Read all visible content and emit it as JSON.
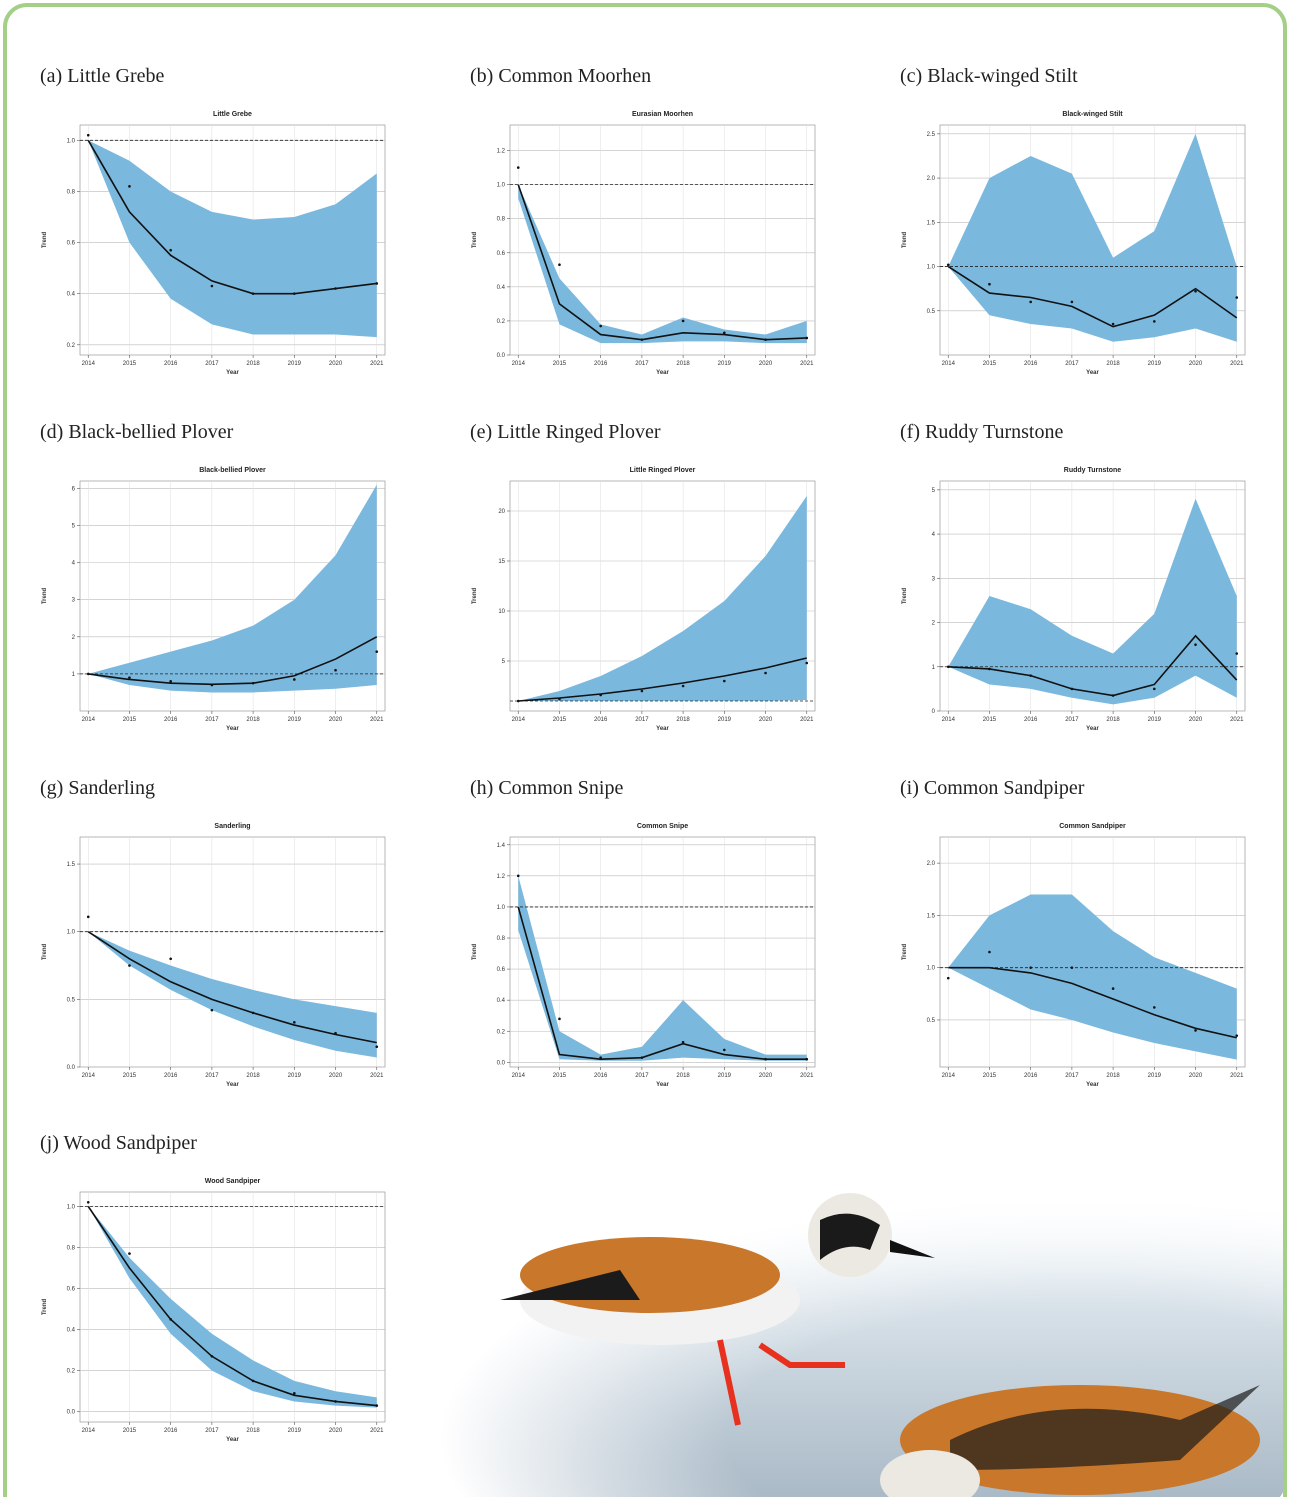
{
  "chart_data": [
    {
      "type": "line",
      "caption": "(a) Little Grebe",
      "title": "Little Grebe",
      "xlabel": "Year",
      "ylabel": "Trend",
      "x": [
        2014,
        2015,
        2016,
        2017,
        2018,
        2019,
        2020,
        2021
      ],
      "xlim": [
        2013.8,
        2021.2
      ],
      "xticks": [
        2014,
        2015,
        2016,
        2017,
        2018,
        2019,
        2020,
        2021
      ],
      "ylim": [
        0.16,
        1.06
      ],
      "yticks": [
        0.2,
        0.4,
        0.6,
        0.8,
        {
          "value": 1,
          "label": "1.0"
        }
      ],
      "reference": 1,
      "grid": true,
      "band": {
        "color": "#7ab8de",
        "lower": [
          1.0,
          0.6,
          0.38,
          0.28,
          0.24,
          0.24,
          0.24,
          0.23
        ],
        "upper": [
          1.0,
          0.92,
          0.8,
          0.72,
          0.69,
          0.7,
          0.75,
          0.87
        ]
      },
      "series": [
        {
          "style": "line",
          "color": "#111111",
          "values": [
            1.0,
            0.72,
            0.55,
            0.45,
            0.4,
            0.4,
            0.42,
            0.44
          ]
        },
        {
          "style": "points",
          "color": "#111111",
          "values": [
            1.02,
            0.82,
            0.57,
            0.43,
            0.4,
            0.4,
            0.42,
            0.44
          ]
        }
      ]
    },
    {
      "type": "line",
      "caption": "(b) Common Moorhen",
      "title": "Eurasian Moorhen",
      "xlabel": "Year",
      "ylabel": "Trend",
      "x": [
        2014,
        2015,
        2016,
        2017,
        2018,
        2019,
        2020,
        2021
      ],
      "xlim": [
        2013.8,
        2021.2
      ],
      "xticks": [
        2014,
        2015,
        2016,
        2017,
        2018,
        2019,
        2020,
        2021
      ],
      "ylim": [
        0,
        1.35
      ],
      "yticks": [
        {
          "value": 0,
          "label": "0.0"
        },
        0.2,
        0.4,
        0.6,
        0.8,
        {
          "value": 1,
          "label": "1.0"
        },
        1.2
      ],
      "reference": 1,
      "grid": true,
      "band": {
        "color": "#7ab8de",
        "lower": [
          0.92,
          0.18,
          0.07,
          0.07,
          0.08,
          0.08,
          0.07,
          0.07
        ],
        "upper": [
          1.0,
          0.45,
          0.18,
          0.12,
          0.22,
          0.15,
          0.12,
          0.2
        ]
      },
      "series": [
        {
          "style": "line",
          "color": "#111111",
          "values": [
            1.0,
            0.3,
            0.12,
            0.09,
            0.13,
            0.12,
            0.09,
            0.1
          ]
        },
        {
          "style": "points",
          "color": "#111111",
          "values": [
            1.1,
            0.53,
            0.17,
            0.09,
            0.2,
            0.13,
            0.09,
            0.1
          ]
        }
      ]
    },
    {
      "type": "line",
      "caption": "(c) Black-winged Stilt",
      "title": "Black-winged Stilt",
      "xlabel": "Year",
      "ylabel": "Trend",
      "x": [
        2014,
        2015,
        2016,
        2017,
        2018,
        2019,
        2020,
        2021
      ],
      "xlim": [
        2013.8,
        2021.2
      ],
      "xticks": [
        2014,
        2015,
        2016,
        2017,
        2018,
        2019,
        2020,
        2021
      ],
      "ylim": [
        0,
        2.6
      ],
      "yticks": [
        0.5,
        {
          "value": 1,
          "label": "1.0"
        },
        1.5,
        {
          "value": 2,
          "label": "2.0"
        },
        2.5
      ],
      "reference": 1,
      "grid": true,
      "band": {
        "color": "#7ab8de",
        "lower": [
          1.0,
          0.45,
          0.35,
          0.3,
          0.15,
          0.2,
          0.3,
          0.15
        ],
        "upper": [
          1.0,
          2.0,
          2.25,
          2.05,
          1.1,
          1.4,
          2.5,
          1.0
        ]
      },
      "series": [
        {
          "style": "line",
          "color": "#111111",
          "values": [
            1.0,
            0.7,
            0.65,
            0.55,
            0.32,
            0.45,
            0.75,
            0.42
          ]
        },
        {
          "style": "points",
          "color": "#111111",
          "values": [
            1.02,
            0.8,
            0.6,
            0.6,
            0.35,
            0.38,
            0.72,
            0.65
          ]
        }
      ]
    },
    {
      "type": "line",
      "caption": "(d) Black-bellied Plover",
      "title": "Black-bellied Plover",
      "xlabel": "Year",
      "ylabel": "Trend",
      "x": [
        2014,
        2015,
        2016,
        2017,
        2018,
        2019,
        2020,
        2021
      ],
      "xlim": [
        2013.8,
        2021.2
      ],
      "xticks": [
        2014,
        2015,
        2016,
        2017,
        2018,
        2019,
        2020,
        2021
      ],
      "ylim": [
        0,
        6.2
      ],
      "yticks": [
        1,
        2,
        3,
        4,
        5,
        6
      ],
      "reference": 1,
      "grid": true,
      "band": {
        "color": "#7ab8de",
        "lower": [
          1,
          0.7,
          0.55,
          0.5,
          0.5,
          0.55,
          0.6,
          0.7
        ],
        "upper": [
          1,
          1.3,
          1.6,
          1.9,
          2.3,
          3.0,
          4.2,
          6.1
        ]
      },
      "series": [
        {
          "style": "line",
          "color": "#111111",
          "values": [
            1,
            0.85,
            0.75,
            0.72,
            0.75,
            0.95,
            1.4,
            2.0
          ]
        },
        {
          "style": "points",
          "color": "#111111",
          "values": [
            1,
            0.9,
            0.8,
            0.7,
            0.75,
            0.85,
            1.1,
            1.6
          ]
        }
      ]
    },
    {
      "type": "line",
      "caption": "(e) Little Ringed Plover",
      "title": "Little Ringed Plover",
      "xlabel": "Year",
      "ylabel": "Trend",
      "x": [
        2014,
        2015,
        2016,
        2017,
        2018,
        2019,
        2020,
        2021
      ],
      "xlim": [
        2013.8,
        2021.2
      ],
      "xticks": [
        2014,
        2015,
        2016,
        2017,
        2018,
        2019,
        2020,
        2021
      ],
      "ylim": [
        0,
        23
      ],
      "yticks": [
        5,
        10,
        15,
        20
      ],
      "reference": 1,
      "grid": true,
      "band": {
        "color": "#7ab8de",
        "lower": [
          1,
          1.0,
          1.0,
          1.0,
          1.0,
          1.0,
          1.0,
          1.1
        ],
        "upper": [
          1,
          2,
          3.5,
          5.5,
          8,
          11,
          15.5,
          21.5
        ]
      },
      "series": [
        {
          "style": "line",
          "color": "#111111",
          "values": [
            1,
            1.3,
            1.7,
            2.2,
            2.8,
            3.5,
            4.3,
            5.3
          ]
        },
        {
          "style": "points",
          "color": "#111111",
          "values": [
            1,
            1.2,
            1.6,
            2,
            2.5,
            3,
            3.8,
            4.8
          ]
        }
      ]
    },
    {
      "type": "line",
      "caption": "(f) Ruddy Turnstone",
      "title": "Ruddy Turnstone",
      "xlabel": "Year",
      "ylabel": "Trend",
      "x": [
        2014,
        2015,
        2016,
        2017,
        2018,
        2019,
        2020,
        2021
      ],
      "xlim": [
        2013.8,
        2021.2
      ],
      "xticks": [
        2014,
        2015,
        2016,
        2017,
        2018,
        2019,
        2020,
        2021
      ],
      "ylim": [
        0,
        5.2
      ],
      "yticks": [
        0,
        1,
        2,
        3,
        4,
        5
      ],
      "reference": 1,
      "grid": true,
      "band": {
        "color": "#7ab8de",
        "lower": [
          1,
          0.6,
          0.5,
          0.3,
          0.15,
          0.3,
          0.8,
          0.3
        ],
        "upper": [
          1,
          2.6,
          2.3,
          1.7,
          1.3,
          2.2,
          4.8,
          2.6
        ]
      },
      "series": [
        {
          "style": "line",
          "color": "#111111",
          "values": [
            1,
            0.95,
            0.8,
            0.5,
            0.35,
            0.6,
            1.7,
            0.7
          ]
        },
        {
          "style": "points",
          "color": "#111111",
          "values": [
            1,
            0.95,
            0.8,
            0.5,
            0.35,
            0.5,
            1.5,
            1.3
          ]
        }
      ]
    },
    {
      "type": "line",
      "caption": "(g) Sanderling",
      "title": "Sanderling",
      "xlabel": "Year",
      "ylabel": "Trend",
      "x": [
        2014,
        2015,
        2016,
        2017,
        2018,
        2019,
        2020,
        2021
      ],
      "xlim": [
        2013.8,
        2021.2
      ],
      "xticks": [
        2014,
        2015,
        2016,
        2017,
        2018,
        2019,
        2020,
        2021
      ],
      "ylim": [
        0,
        1.7
      ],
      "yticks": [
        {
          "value": 0,
          "label": "0.0"
        },
        0.5,
        {
          "value": 1,
          "label": "1.0"
        },
        1.5
      ],
      "reference": 1,
      "grid": true,
      "band": {
        "color": "#7ab8de",
        "lower": [
          1,
          0.75,
          0.57,
          0.42,
          0.3,
          0.2,
          0.12,
          0.07
        ],
        "upper": [
          1,
          0.86,
          0.75,
          0.65,
          0.57,
          0.5,
          0.45,
          0.4
        ]
      },
      "series": [
        {
          "style": "line",
          "color": "#111111",
          "values": [
            1,
            0.8,
            0.63,
            0.5,
            0.4,
            0.31,
            0.24,
            0.18
          ]
        },
        {
          "style": "points",
          "color": "#111111",
          "values": [
            1.11,
            0.75,
            0.8,
            0.42,
            0.4,
            0.33,
            0.25,
            0.15
          ]
        }
      ]
    },
    {
      "type": "line",
      "caption": "(h) Common Snipe",
      "title": "Common Snipe",
      "xlabel": "Year",
      "ylabel": "Trend",
      "x": [
        2014,
        2015,
        2016,
        2017,
        2018,
        2019,
        2020,
        2021
      ],
      "xlim": [
        2013.8,
        2021.2
      ],
      "xticks": [
        2014,
        2015,
        2016,
        2017,
        2018,
        2019,
        2020,
        2021
      ],
      "ylim": [
        -0.03,
        1.45
      ],
      "yticks": [
        {
          "value": 0,
          "label": "0.0"
        },
        0.2,
        0.4,
        0.6,
        0.8,
        {
          "value": 1,
          "label": "1.0"
        },
        1.2,
        1.4
      ],
      "reference": 1,
      "grid": true,
      "band": {
        "color": "#7ab8de",
        "lower": [
          0.85,
          0.02,
          0.01,
          0.01,
          0.03,
          0.02,
          0.01,
          0.01
        ],
        "upper": [
          1.2,
          0.2,
          0.05,
          0.1,
          0.4,
          0.15,
          0.05,
          0.05
        ]
      },
      "series": [
        {
          "style": "line",
          "color": "#111111",
          "values": [
            1.0,
            0.05,
            0.02,
            0.03,
            0.12,
            0.05,
            0.02,
            0.02
          ]
        },
        {
          "style": "points",
          "color": "#111111",
          "values": [
            1.2,
            0.28,
            0.03,
            0.03,
            0.13,
            0.08,
            0.02,
            0.02
          ]
        }
      ]
    },
    {
      "type": "line",
      "caption": "(i) Common Sandpiper",
      "title": "Common Sandpiper",
      "xlabel": "Year",
      "ylabel": "Trend",
      "x": [
        2014,
        2015,
        2016,
        2017,
        2018,
        2019,
        2020,
        2021
      ],
      "xlim": [
        2013.8,
        2021.2
      ],
      "xticks": [
        2014,
        2015,
        2016,
        2017,
        2018,
        2019,
        2020,
        2021
      ],
      "ylim": [
        0.05,
        2.25
      ],
      "yticks": [
        0.5,
        {
          "value": 1,
          "label": "1.0"
        },
        1.5,
        {
          "value": 2,
          "label": "2.0"
        }
      ],
      "reference": 1,
      "grid": true,
      "band": {
        "color": "#7ab8de",
        "lower": [
          1,
          0.8,
          0.6,
          0.5,
          0.38,
          0.28,
          0.2,
          0.12
        ],
        "upper": [
          1,
          1.5,
          1.7,
          1.7,
          1.35,
          1.1,
          0.95,
          0.8
        ]
      },
      "series": [
        {
          "style": "line",
          "color": "#111111",
          "values": [
            1,
            1.0,
            0.95,
            0.85,
            0.7,
            0.55,
            0.42,
            0.33
          ]
        },
        {
          "style": "points",
          "color": "#111111",
          "values": [
            0.9,
            1.15,
            1.0,
            1.0,
            0.8,
            0.62,
            0.4,
            0.35
          ]
        }
      ]
    },
    {
      "type": "line",
      "caption": "(j) Wood Sandpiper",
      "title": "Wood Sandpiper",
      "xlabel": "Year",
      "ylabel": "Trend",
      "x": [
        2014,
        2015,
        2016,
        2017,
        2018,
        2019,
        2020,
        2021
      ],
      "xlim": [
        2013.8,
        2021.2
      ],
      "xticks": [
        2014,
        2015,
        2016,
        2017,
        2018,
        2019,
        2020,
        2021
      ],
      "ylim": [
        -0.05,
        1.07
      ],
      "yticks": [
        {
          "value": 0,
          "label": "0.0"
        },
        0.2,
        0.4,
        0.6,
        0.8,
        {
          "value": 1,
          "label": "1.0"
        }
      ],
      "reference": 1,
      "grid": true,
      "band": {
        "color": "#7ab8de",
        "lower": [
          1,
          0.65,
          0.38,
          0.2,
          0.1,
          0.05,
          0.03,
          0.02
        ],
        "upper": [
          1,
          0.75,
          0.55,
          0.38,
          0.25,
          0.15,
          0.1,
          0.07
        ]
      },
      "series": [
        {
          "style": "line",
          "color": "#111111",
          "values": [
            1,
            0.7,
            0.45,
            0.27,
            0.15,
            0.08,
            0.05,
            0.03
          ]
        },
        {
          "style": "points",
          "color": "#111111",
          "values": [
            1.02,
            0.77,
            0.45,
            0.27,
            0.15,
            0.09,
            0.05,
            0.03
          ]
        }
      ]
    }
  ]
}
